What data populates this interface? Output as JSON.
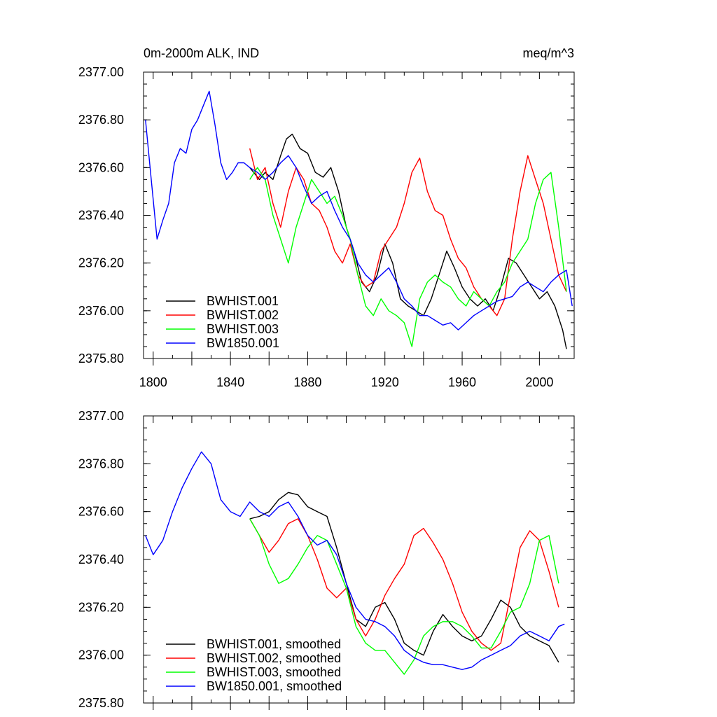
{
  "chart_data": [
    {
      "type": "line",
      "title_left": "0m-2000m ALK, IND",
      "title_right": "meq/m^3",
      "xlabel": "",
      "ylabel": "",
      "xlim": [
        1795,
        2018
      ],
      "ylim": [
        2375.8,
        2377.0
      ],
      "yticks": [
        2375.8,
        2376.0,
        2376.2,
        2376.4,
        2376.6,
        2376.8,
        2377.0
      ],
      "ytick_labels": [
        "2375.80",
        "2376.00",
        "2376.20",
        "2376.40",
        "2376.60",
        "2376.80",
        "2377.00"
      ],
      "xticks": [
        1800,
        1840,
        1880,
        1920,
        1960,
        2000
      ],
      "xtick_labels": [
        "1800",
        "1840",
        "1880",
        "1920",
        "1960",
        "2000"
      ],
      "legend": "bottom-left",
      "series": [
        {
          "name": "BWHIST.001",
          "color": "#000000",
          "x": [
            1850,
            1855,
            1858,
            1862,
            1866,
            1869,
            1872,
            1876,
            1880,
            1884,
            1888,
            1892,
            1896,
            1900,
            1904,
            1908,
            1912,
            1916,
            1920,
            1924,
            1928,
            1932,
            1936,
            1940,
            1944,
            1948,
            1952,
            1956,
            1960,
            1964,
            1968,
            1972,
            1976,
            1980,
            1984,
            1988,
            1992,
            1996,
            2000,
            2004,
            2008,
            2012,
            2014
          ],
          "y": [
            2376.6,
            2376.55,
            2376.58,
            2376.55,
            2376.65,
            2376.72,
            2376.74,
            2376.68,
            2376.66,
            2376.58,
            2376.56,
            2376.6,
            2376.5,
            2376.35,
            2376.25,
            2376.12,
            2376.08,
            2376.15,
            2376.28,
            2376.2,
            2376.05,
            2376.02,
            2376.0,
            2375.98,
            2376.05,
            2376.15,
            2376.25,
            2376.18,
            2376.1,
            2376.05,
            2376.02,
            2376.05,
            2376.0,
            2376.1,
            2376.22,
            2376.2,
            2376.15,
            2376.1,
            2376.05,
            2376.08,
            2376.02,
            2375.92,
            2375.84
          ]
        },
        {
          "name": "BWHIST.002",
          "color": "#ff0000",
          "x": [
            1850,
            1854,
            1858,
            1862,
            1866,
            1870,
            1874,
            1878,
            1882,
            1886,
            1890,
            1894,
            1898,
            1902,
            1906,
            1910,
            1914,
            1918,
            1922,
            1926,
            1930,
            1934,
            1938,
            1942,
            1946,
            1950,
            1954,
            1958,
            1962,
            1966,
            1970,
            1974,
            1978,
            1982,
            1986,
            1990,
            1994,
            1998,
            2002,
            2006,
            2010,
            2014
          ],
          "y": [
            2376.68,
            2376.55,
            2376.6,
            2376.45,
            2376.35,
            2376.5,
            2376.6,
            2376.55,
            2376.45,
            2376.42,
            2376.35,
            2376.25,
            2376.2,
            2376.28,
            2376.15,
            2376.1,
            2376.12,
            2376.25,
            2376.3,
            2376.35,
            2376.45,
            2376.58,
            2376.64,
            2376.5,
            2376.42,
            2376.4,
            2376.3,
            2376.22,
            2376.18,
            2376.1,
            2376.05,
            2376.02,
            2375.98,
            2376.05,
            2376.3,
            2376.5,
            2376.65,
            2376.55,
            2376.45,
            2376.3,
            2376.15,
            2376.08
          ]
        },
        {
          "name": "BWHIST.003",
          "color": "#00ff00",
          "x": [
            1850,
            1854,
            1858,
            1862,
            1866,
            1870,
            1874,
            1878,
            1882,
            1886,
            1890,
            1894,
            1898,
            1902,
            1906,
            1910,
            1914,
            1918,
            1922,
            1926,
            1930,
            1934,
            1938,
            1942,
            1946,
            1950,
            1954,
            1958,
            1962,
            1966,
            1970,
            1974,
            1978,
            1982,
            1986,
            1990,
            1994,
            1998,
            2002,
            2006,
            2010,
            2014
          ],
          "y": [
            2376.55,
            2376.6,
            2376.55,
            2376.4,
            2376.3,
            2376.2,
            2376.35,
            2376.45,
            2376.55,
            2376.5,
            2376.45,
            2376.48,
            2376.4,
            2376.3,
            2376.15,
            2376.02,
            2375.98,
            2376.05,
            2376.0,
            2375.98,
            2375.95,
            2375.85,
            2376.05,
            2376.12,
            2376.15,
            2376.12,
            2376.1,
            2376.05,
            2376.02,
            2376.08,
            2376.05,
            2376.02,
            2376.08,
            2376.12,
            2376.2,
            2376.25,
            2376.3,
            2376.45,
            2376.55,
            2376.58,
            2376.35,
            2376.08
          ]
        },
        {
          "name": "BW1850.001",
          "color": "#0000ff",
          "x": [
            1796,
            1799,
            1802,
            1805,
            1808,
            1811,
            1814,
            1817,
            1820,
            1823,
            1826,
            1829,
            1832,
            1835,
            1838,
            1841,
            1844,
            1847,
            1850,
            1854,
            1858,
            1862,
            1866,
            1870,
            1874,
            1878,
            1882,
            1886,
            1890,
            1894,
            1898,
            1902,
            1906,
            1910,
            1914,
            1918,
            1922,
            1926,
            1930,
            1934,
            1938,
            1942,
            1946,
            1950,
            1954,
            1958,
            1962,
            1966,
            1970,
            1974,
            1978,
            1982,
            1986,
            1990,
            1994,
            1998,
            2002,
            2006,
            2010,
            2014,
            2017
          ],
          "y": [
            2376.8,
            2376.55,
            2376.3,
            2376.38,
            2376.45,
            2376.62,
            2376.68,
            2376.66,
            2376.76,
            2376.8,
            2376.86,
            2376.92,
            2376.78,
            2376.62,
            2376.55,
            2376.58,
            2376.62,
            2376.62,
            2376.6,
            2376.58,
            2376.55,
            2376.58,
            2376.62,
            2376.65,
            2376.6,
            2376.52,
            2376.45,
            2376.48,
            2376.5,
            2376.42,
            2376.35,
            2376.3,
            2376.2,
            2376.15,
            2376.12,
            2376.15,
            2376.18,
            2376.12,
            2376.05,
            2376.02,
            2375.98,
            2375.98,
            2375.96,
            2375.94,
            2375.95,
            2375.92,
            2375.95,
            2375.98,
            2376.0,
            2376.02,
            2376.04,
            2376.05,
            2376.06,
            2376.1,
            2376.12,
            2376.1,
            2376.08,
            2376.12,
            2376.15,
            2376.17,
            2376.02
          ]
        }
      ]
    },
    {
      "type": "line",
      "title_left": "",
      "title_right": "",
      "xlabel": "",
      "ylabel": "",
      "xlim": [
        1795,
        2018
      ],
      "ylim": [
        2375.8,
        2377.0
      ],
      "yticks": [
        2375.8,
        2376.0,
        2376.2,
        2376.4,
        2376.6,
        2376.8,
        2377.0
      ],
      "ytick_labels": [
        "2375.80",
        "2376.00",
        "2376.20",
        "2376.40",
        "2376.60",
        "2376.80",
        "2377.00"
      ],
      "xticks": [
        1800,
        1840,
        1880,
        1920,
        1960,
        2000
      ],
      "xtick_labels": [],
      "legend": "bottom-left",
      "series": [
        {
          "name": "BWHIST.001, smoothed",
          "color": "#000000",
          "x": [
            1850,
            1855,
            1860,
            1865,
            1870,
            1875,
            1880,
            1885,
            1890,
            1895,
            1900,
            1905,
            1910,
            1915,
            1920,
            1925,
            1930,
            1935,
            1940,
            1945,
            1950,
            1955,
            1960,
            1965,
            1970,
            1975,
            1980,
            1985,
            1990,
            1995,
            2000,
            2005,
            2010
          ],
          "y": [
            2376.57,
            2376.58,
            2376.6,
            2376.65,
            2376.68,
            2376.67,
            2376.62,
            2376.6,
            2376.58,
            2376.45,
            2376.3,
            2376.15,
            2376.12,
            2376.2,
            2376.22,
            2376.15,
            2376.05,
            2376.02,
            2376.0,
            2376.1,
            2376.17,
            2376.12,
            2376.08,
            2376.06,
            2376.08,
            2376.15,
            2376.23,
            2376.2,
            2376.12,
            2376.08,
            2376.06,
            2376.04,
            2375.97
          ]
        },
        {
          "name": "BWHIST.002, smoothed",
          "color": "#ff0000",
          "x": [
            1850,
            1855,
            1860,
            1865,
            1870,
            1875,
            1880,
            1885,
            1890,
            1895,
            1900,
            1905,
            1910,
            1915,
            1920,
            1925,
            1930,
            1935,
            1940,
            1945,
            1950,
            1955,
            1960,
            1965,
            1970,
            1975,
            1980,
            1985,
            1990,
            1995,
            2000,
            2005,
            2010
          ],
          "y": [
            2376.57,
            2376.5,
            2376.43,
            2376.48,
            2376.55,
            2376.57,
            2376.5,
            2376.4,
            2376.28,
            2376.24,
            2376.28,
            2376.15,
            2376.08,
            2376.15,
            2376.25,
            2376.32,
            2376.38,
            2376.5,
            2376.53,
            2376.47,
            2376.4,
            2376.3,
            2376.18,
            2376.1,
            2376.05,
            2376.02,
            2376.05,
            2376.25,
            2376.45,
            2376.52,
            2376.48,
            2376.35,
            2376.2
          ]
        },
        {
          "name": "BWHIST.003, smoothed",
          "color": "#00ff00",
          "x": [
            1850,
            1855,
            1860,
            1865,
            1870,
            1875,
            1880,
            1885,
            1890,
            1895,
            1900,
            1905,
            1910,
            1915,
            1920,
            1925,
            1930,
            1935,
            1940,
            1945,
            1950,
            1955,
            1960,
            1965,
            1970,
            1975,
            1980,
            1985,
            1990,
            1995,
            2000,
            2005,
            2010
          ],
          "y": [
            2376.57,
            2376.5,
            2376.38,
            2376.3,
            2376.32,
            2376.38,
            2376.45,
            2376.5,
            2376.48,
            2376.38,
            2376.28,
            2376.12,
            2376.05,
            2376.02,
            2376.02,
            2375.97,
            2375.92,
            2375.98,
            2376.08,
            2376.12,
            2376.14,
            2376.14,
            2376.12,
            2376.08,
            2376.03,
            2376.03,
            2376.1,
            2376.18,
            2376.2,
            2376.3,
            2376.48,
            2376.5,
            2376.3
          ]
        },
        {
          "name": "BW1850.001, smoothed",
          "color": "#0000ff",
          "x": [
            1796,
            1800,
            1805,
            1810,
            1815,
            1820,
            1825,
            1830,
            1835,
            1840,
            1845,
            1850,
            1855,
            1860,
            1865,
            1870,
            1875,
            1880,
            1885,
            1890,
            1895,
            1900,
            1905,
            1910,
            1915,
            1920,
            1925,
            1930,
            1935,
            1940,
            1945,
            1950,
            1955,
            1960,
            1965,
            1970,
            1975,
            1980,
            1985,
            1990,
            1995,
            2000,
            2005,
            2010,
            2013
          ],
          "y": [
            2376.5,
            2376.42,
            2376.48,
            2376.6,
            2376.7,
            2376.78,
            2376.85,
            2376.8,
            2376.65,
            2376.6,
            2376.58,
            2376.64,
            2376.6,
            2376.58,
            2376.62,
            2376.64,
            2376.58,
            2376.5,
            2376.46,
            2376.48,
            2376.42,
            2376.3,
            2376.2,
            2376.15,
            2376.14,
            2376.12,
            2376.08,
            2376.02,
            2375.99,
            2375.97,
            2375.96,
            2375.96,
            2375.95,
            2375.94,
            2375.95,
            2375.98,
            2376.0,
            2376.02,
            2376.04,
            2376.08,
            2376.1,
            2376.08,
            2376.06,
            2376.12,
            2376.13
          ]
        }
      ]
    }
  ]
}
